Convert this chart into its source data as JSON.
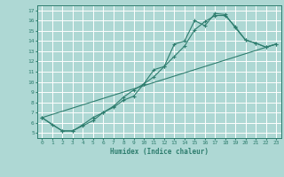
{
  "background_color": "#aed8d4",
  "grid_color": "#ffffff",
  "line_color": "#2e7d6e",
  "xlabel": "Humidex (Indice chaleur)",
  "xlim": [
    -0.5,
    23.5
  ],
  "ylim": [
    4.5,
    17.5
  ],
  "xticks": [
    0,
    1,
    2,
    3,
    4,
    5,
    6,
    7,
    8,
    9,
    10,
    11,
    12,
    13,
    14,
    15,
    16,
    17,
    18,
    19,
    20,
    21,
    22,
    23
  ],
  "yticks": [
    5,
    6,
    7,
    8,
    9,
    10,
    11,
    12,
    13,
    14,
    15,
    16,
    17
  ],
  "line1_x": [
    0,
    1,
    2,
    3,
    4,
    5,
    6,
    7,
    8,
    9,
    10,
    11,
    12,
    13,
    14,
    15,
    16,
    17,
    18,
    19,
    20,
    21,
    22,
    23
  ],
  "line1_y": [
    6.5,
    5.8,
    5.2,
    5.2,
    5.7,
    6.2,
    7.0,
    7.5,
    8.2,
    8.6,
    9.8,
    11.2,
    11.5,
    13.7,
    14.0,
    16.0,
    15.5,
    16.7,
    16.6,
    15.3,
    14.1,
    13.8,
    13.4,
    13.7
  ],
  "line2_x": [
    0,
    2,
    3,
    4,
    5,
    6,
    7,
    8,
    9,
    10,
    11,
    12,
    13,
    14,
    15,
    16,
    17,
    18,
    19,
    20,
    21,
    22,
    23
  ],
  "line2_y": [
    6.5,
    5.2,
    5.2,
    5.8,
    6.5,
    7.0,
    7.6,
    8.5,
    9.2,
    9.8,
    10.5,
    11.5,
    12.5,
    13.5,
    15.1,
    15.9,
    16.5,
    16.5,
    15.4,
    14.1,
    13.8,
    13.4,
    13.7
  ],
  "line3_x": [
    0,
    23
  ],
  "line3_y": [
    6.5,
    13.7
  ]
}
